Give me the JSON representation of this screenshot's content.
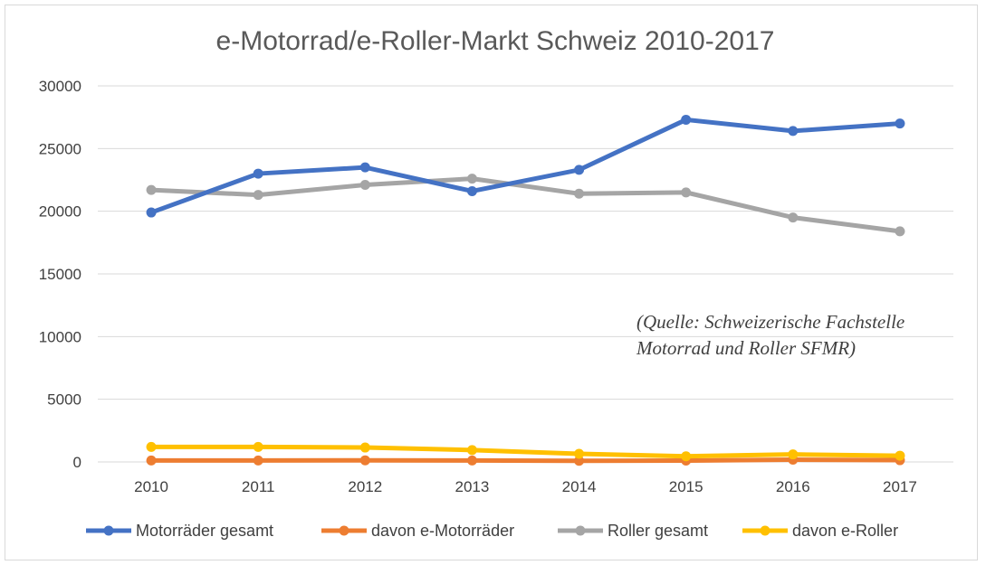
{
  "chart_data": {
    "type": "line",
    "title": "e-Motorrad/e-Roller-Markt Schweiz 2010-2017",
    "categories": [
      "2010",
      "2011",
      "2012",
      "2013",
      "2014",
      "2015",
      "2016",
      "2017"
    ],
    "series": [
      {
        "name": "Motorräder gesamt",
        "color": "#4472c4",
        "values": [
          19900,
          23000,
          23500,
          21600,
          23300,
          27300,
          26400,
          27000
        ]
      },
      {
        "name": "davon e-Motorräder",
        "color": "#ed7d31",
        "values": [
          120,
          120,
          130,
          120,
          90,
          110,
          180,
          140
        ]
      },
      {
        "name": "Roller gesamt",
        "color": "#a5a5a5",
        "values": [
          21700,
          21300,
          22100,
          22600,
          21400,
          21500,
          19500,
          18400
        ]
      },
      {
        "name": "davon e-Roller",
        "color": "#ffc000",
        "values": [
          1200,
          1200,
          1150,
          950,
          650,
          450,
          600,
          500
        ]
      }
    ],
    "ylim": [
      0,
      30000
    ],
    "yticks": [
      "0",
      "5000",
      "10000",
      "15000",
      "20000",
      "25000",
      "30000"
    ],
    "grid": true,
    "legend": "bottom",
    "annotation": [
      "(Quelle: Schweizerische Fachstelle",
      "Motorrad und Roller SFMR)"
    ]
  }
}
